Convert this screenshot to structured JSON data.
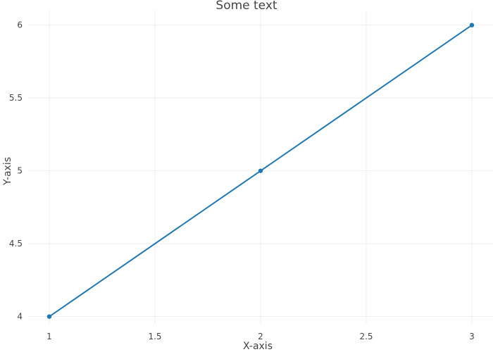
{
  "chart_data": {
    "type": "line",
    "title": "Some text",
    "xlabel": "X-axis",
    "ylabel": "Y-axis",
    "x": [
      1,
      2,
      3
    ],
    "series": [
      {
        "values": [
          4,
          5,
          6
        ]
      }
    ],
    "xlim": [
      0.9,
      3.1
    ],
    "ylim": [
      3.95,
      6.1
    ],
    "x_ticks": [
      1,
      1.5,
      2,
      2.5,
      3
    ],
    "x_tick_labels": [
      "1",
      "1.5",
      "2",
      "2.5",
      "3"
    ],
    "y_ticks": [
      4,
      4.5,
      5,
      5.5,
      6
    ],
    "y_tick_labels": [
      "4",
      "4.5",
      "5",
      "5.5",
      "6"
    ],
    "grid": true,
    "legend": "none",
    "line_color": "#1f77b4",
    "grid_color": "#eeeeee",
    "text_color": "#444444"
  }
}
